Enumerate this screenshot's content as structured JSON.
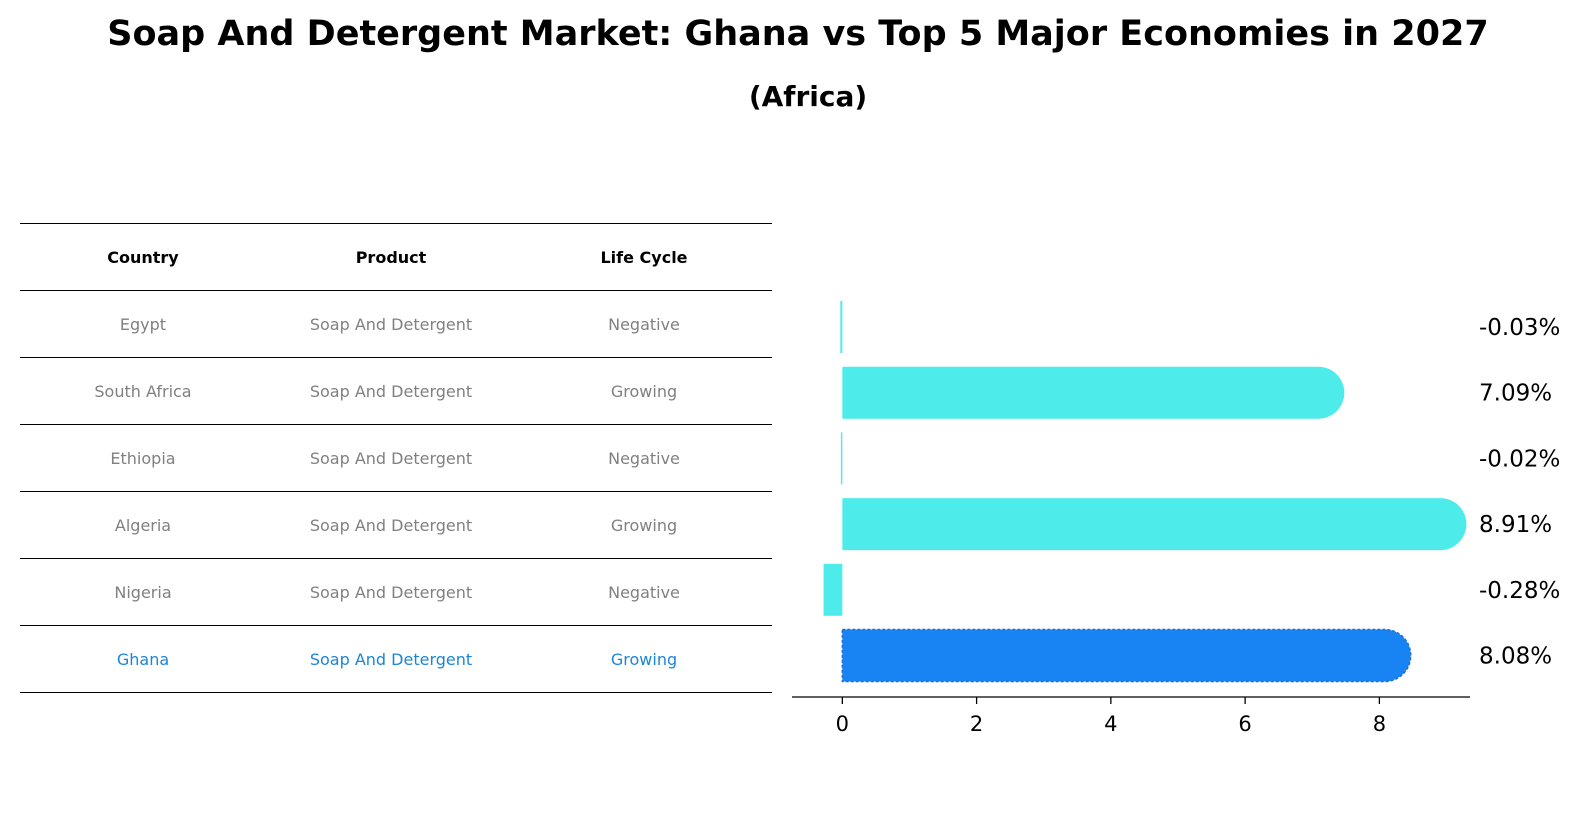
{
  "title": "Soap And Detergent Market: Ghana vs Top 5 Major Economies in 2027",
  "subtitle": "(Africa)",
  "table": {
    "headers": [
      "Country",
      "Product",
      "Life Cycle"
    ],
    "rows": [
      {
        "country": "Egypt",
        "product": "Soap And Detergent",
        "life_cycle": "Negative"
      },
      {
        "country": "South Africa",
        "product": "Soap And Detergent",
        "life_cycle": "Growing"
      },
      {
        "country": "Ethiopia",
        "product": "Soap And Detergent",
        "life_cycle": "Negative"
      },
      {
        "country": "Algeria",
        "product": "Soap And Detergent",
        "life_cycle": "Growing"
      },
      {
        "country": "Nigeria",
        "product": "Soap And Detergent",
        "life_cycle": "Negative"
      },
      {
        "country": "Ghana",
        "product": "Soap And Detergent",
        "life_cycle": "Growing"
      }
    ],
    "highlight_color": "#1a86d8",
    "text_color": "#808080"
  },
  "chart_data": {
    "type": "bar",
    "orientation": "horizontal",
    "categories": [
      "Egypt",
      "South Africa",
      "Ethiopia",
      "Algeria",
      "Nigeria",
      "Ghana"
    ],
    "values": [
      -0.03,
      7.09,
      -0.02,
      8.91,
      -0.28,
      8.08
    ],
    "value_labels": [
      "-0.03%",
      "7.09%",
      "-0.02%",
      "8.91%",
      "-0.28%",
      "8.08%"
    ],
    "highlight_category": "Ghana",
    "colors": {
      "default": "#4eebeb",
      "highlight": "#1884f4"
    },
    "xlim": [
      -0.75,
      9.35
    ],
    "xticks": [
      0,
      2,
      4,
      6,
      8
    ],
    "xtick_labels": [
      "0",
      "2",
      "4",
      "6",
      "8"
    ],
    "xlabel": "",
    "ylabel": "",
    "grid": false
  }
}
